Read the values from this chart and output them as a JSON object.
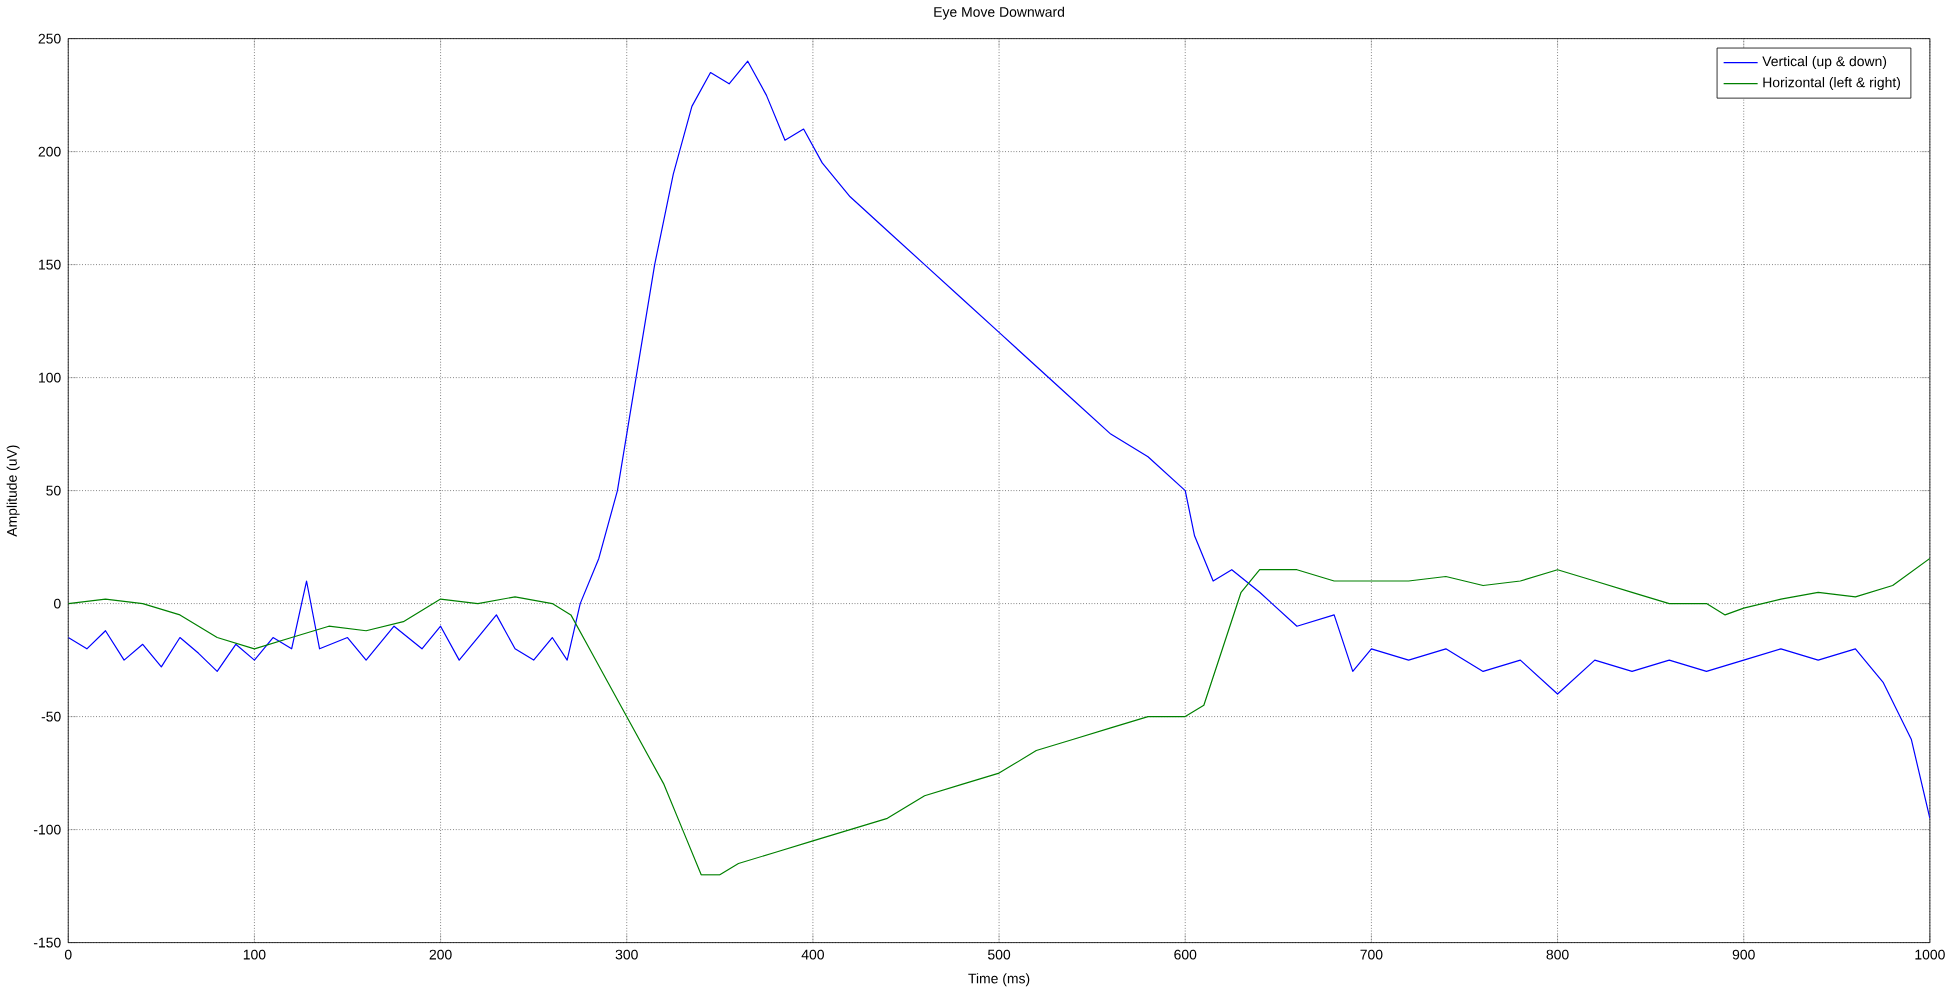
{
  "chart_data": {
    "type": "line",
    "title": "Eye Move Downward",
    "xlabel": "Time (ms)",
    "ylabel": "Amplitude (uV)",
    "xlim": [
      0,
      1000
    ],
    "ylim": [
      -150,
      250
    ],
    "xticks": [
      0,
      100,
      200,
      300,
      400,
      500,
      600,
      700,
      800,
      900,
      1000
    ],
    "yticks": [
      -150,
      -100,
      -50,
      0,
      50,
      100,
      150,
      200,
      250
    ],
    "grid": true,
    "legend": "top right",
    "series": [
      {
        "name": "Vertical (up & down)",
        "color": "#0000ff",
        "x": [
          0,
          10,
          20,
          30,
          40,
          50,
          60,
          70,
          80,
          90,
          100,
          110,
          120,
          128,
          135,
          150,
          160,
          175,
          190,
          200,
          210,
          220,
          230,
          240,
          250,
          260,
          268,
          275,
          285,
          295,
          305,
          315,
          325,
          335,
          345,
          355,
          365,
          375,
          385,
          395,
          405,
          420,
          440,
          460,
          480,
          500,
          520,
          540,
          560,
          580,
          600,
          605,
          615,
          625,
          640,
          660,
          680,
          690,
          700,
          720,
          740,
          760,
          780,
          800,
          820,
          840,
          860,
          880,
          900,
          920,
          940,
          960,
          975,
          990,
          1000
        ],
        "values": [
          -15,
          -20,
          -12,
          -25,
          -18,
          -28,
          -15,
          -22,
          -30,
          -18,
          -25,
          -15,
          -20,
          10,
          -20,
          -15,
          -25,
          -10,
          -20,
          -10,
          -25,
          -15,
          -5,
          -20,
          -25,
          -15,
          -25,
          0,
          20,
          50,
          100,
          150,
          190,
          220,
          235,
          230,
          240,
          225,
          205,
          210,
          195,
          180,
          165,
          150,
          135,
          120,
          105,
          90,
          75,
          65,
          50,
          30,
          10,
          15,
          5,
          -10,
          -5,
          -30,
          -20,
          -25,
          -20,
          -30,
          -25,
          -40,
          -25,
          -30,
          -25,
          -30,
          -25,
          -20,
          -25,
          -20,
          -35,
          -60,
          -95
        ]
      },
      {
        "name": "Horizontal (left & right)",
        "color": "#008000",
        "x": [
          0,
          20,
          40,
          60,
          80,
          100,
          120,
          140,
          160,
          180,
          200,
          220,
          240,
          260,
          270,
          280,
          290,
          300,
          310,
          320,
          330,
          340,
          350,
          360,
          380,
          400,
          420,
          440,
          460,
          480,
          500,
          520,
          540,
          560,
          580,
          600,
          610,
          620,
          630,
          640,
          660,
          680,
          700,
          720,
          740,
          760,
          780,
          800,
          820,
          840,
          860,
          880,
          890,
          900,
          920,
          940,
          960,
          980,
          1000
        ],
        "values": [
          0,
          2,
          0,
          -5,
          -15,
          -20,
          -15,
          -10,
          -12,
          -8,
          2,
          0,
          3,
          0,
          -5,
          -20,
          -35,
          -50,
          -65,
          -80,
          -100,
          -120,
          -120,
          -115,
          -110,
          -105,
          -100,
          -95,
          -85,
          -80,
          -75,
          -65,
          -60,
          -55,
          -50,
          -50,
          -45,
          -20,
          5,
          15,
          15,
          10,
          10,
          10,
          12,
          8,
          10,
          15,
          10,
          5,
          0,
          0,
          -5,
          -2,
          2,
          5,
          3,
          8,
          20
        ]
      }
    ]
  }
}
